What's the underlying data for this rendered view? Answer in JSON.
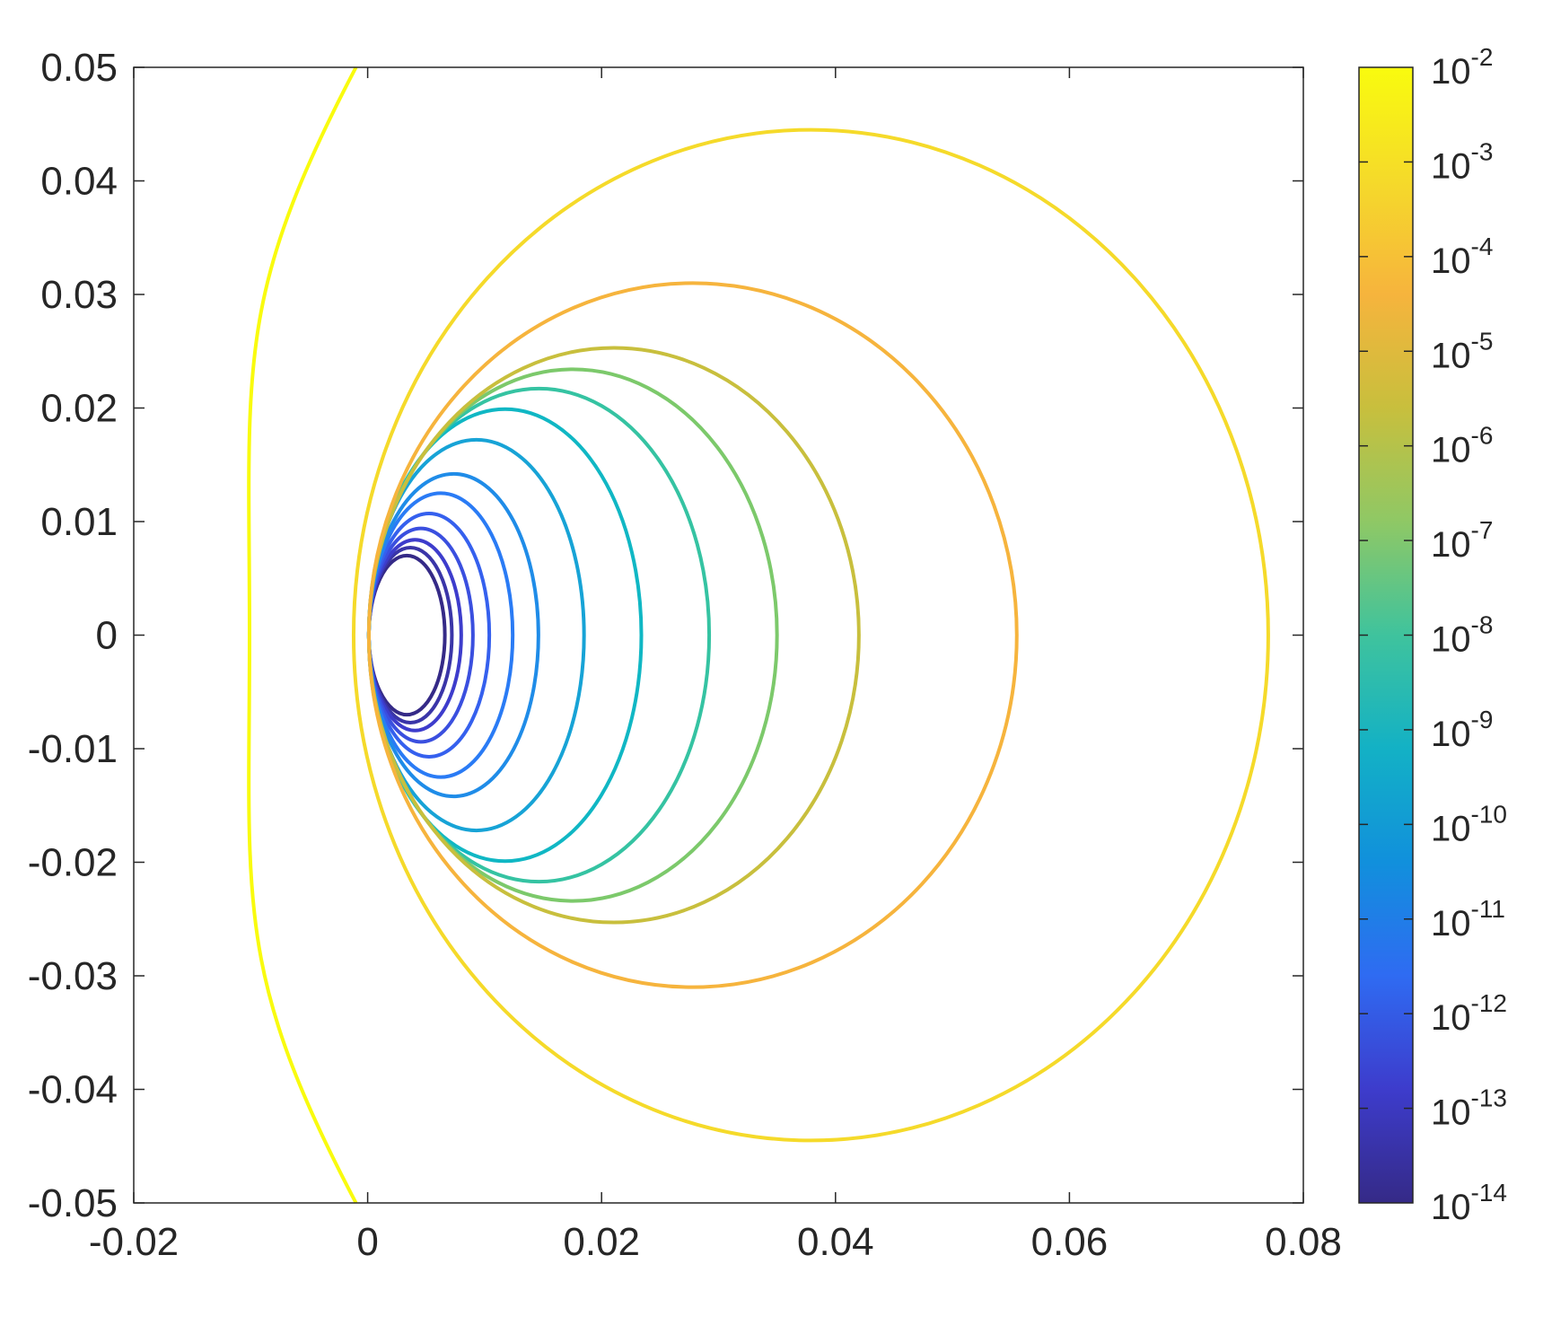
{
  "chart_data": {
    "type": "contour",
    "title": "",
    "xlabel": "",
    "ylabel": "",
    "xlim": [
      -0.02,
      0.08
    ],
    "ylim": [
      -0.05,
      0.05
    ],
    "x_ticks": [
      -0.02,
      0,
      0.02,
      0.04,
      0.06,
      0.08
    ],
    "x_tick_labels": [
      "-0.02",
      "0",
      "0.02",
      "0.04",
      "0.06",
      "0.08"
    ],
    "y_ticks": [
      -0.05,
      -0.04,
      -0.03,
      -0.02,
      -0.01,
      0,
      0.01,
      0.02,
      0.03,
      0.04,
      0.05
    ],
    "y_tick_labels": [
      "-0.05",
      "-0.04",
      "-0.03",
      "-0.02",
      "-0.01",
      "0",
      "0.01",
      "0.02",
      "0.03",
      "0.04",
      "0.05"
    ],
    "grid": false,
    "colorbar": {
      "scale": "log",
      "range": [
        1e-14,
        0.01
      ],
      "colormap": "parula",
      "placement": "right",
      "tick_mantissa": "10",
      "tick_exponents": [
        "-2",
        "-3",
        "-4",
        "-5",
        "-6",
        "-7",
        "-8",
        "-9",
        "-10",
        "-11",
        "-12",
        "-13",
        "-14"
      ],
      "stops": [
        "#352a87",
        "#3d3ccc",
        "#2f6bf2",
        "#1190dc",
        "#13b1c5",
        "#3fc39d",
        "#8fc865",
        "#c8bf3d",
        "#f6b43d",
        "#f5da2a",
        "#f9fb0e"
      ]
    },
    "contours": [
      {
        "level": 1e-14,
        "x_left": 0.0001,
        "x_right": 0.0066,
        "y_extent": 0.007,
        "color": "#352a87"
      },
      {
        "level": 3e-14,
        "x_left": 0.0001,
        "x_right": 0.0072,
        "y_extent": 0.0077,
        "color": "#3a35a8"
      },
      {
        "level": 1e-13,
        "x_left": 0.0001,
        "x_right": 0.008,
        "y_extent": 0.0084,
        "color": "#3d3ccc"
      },
      {
        "level": 3e-13,
        "x_left": 0.0001,
        "x_right": 0.009,
        "y_extent": 0.0094,
        "color": "#3a4fdf"
      },
      {
        "level": 1e-12,
        "x_left": 0.0001,
        "x_right": 0.0104,
        "y_extent": 0.0107,
        "color": "#3560ee"
      },
      {
        "level": 1e-11,
        "x_left": 0.0001,
        "x_right": 0.0124,
        "y_extent": 0.0125,
        "color": "#2a7bf5"
      },
      {
        "level": 1e-10,
        "x_left": 0.0001,
        "x_right": 0.0146,
        "y_extent": 0.0142,
        "color": "#1f8ce8"
      },
      {
        "level": 1e-09,
        "x_left": 0.0001,
        "x_right": 0.0185,
        "y_extent": 0.0172,
        "color": "#17a3d6"
      },
      {
        "level": 1e-08,
        "x_left": 0.0001,
        "x_right": 0.0234,
        "y_extent": 0.0199,
        "color": "#10b7c4"
      },
      {
        "level": 1e-07,
        "x_left": 0.0001,
        "x_right": 0.0292,
        "y_extent": 0.0217,
        "color": "#35c3a2"
      },
      {
        "level": 1e-06,
        "x_left": 0.0001,
        "x_right": 0.035,
        "y_extent": 0.0234,
        "color": "#7cc96b"
      },
      {
        "level": 1e-05,
        "x_left": 0.0001,
        "x_right": 0.042,
        "y_extent": 0.0253,
        "color": "#c8bf3d"
      },
      {
        "level": 0.0001,
        "x_left": 0.0001,
        "x_right": 0.0555,
        "y_extent": 0.031,
        "color": "#f6b43d"
      },
      {
        "level": 0.001,
        "x_left": -0.0012,
        "x_right": 0.077,
        "y_extent": 0.0445,
        "color": "#f5da2a"
      },
      {
        "level": 0.01,
        "shape": "open-left",
        "x_at_y0": -0.0101,
        "x_at_ylim": -0.001,
        "color": "#f9fb0e"
      }
    ]
  }
}
